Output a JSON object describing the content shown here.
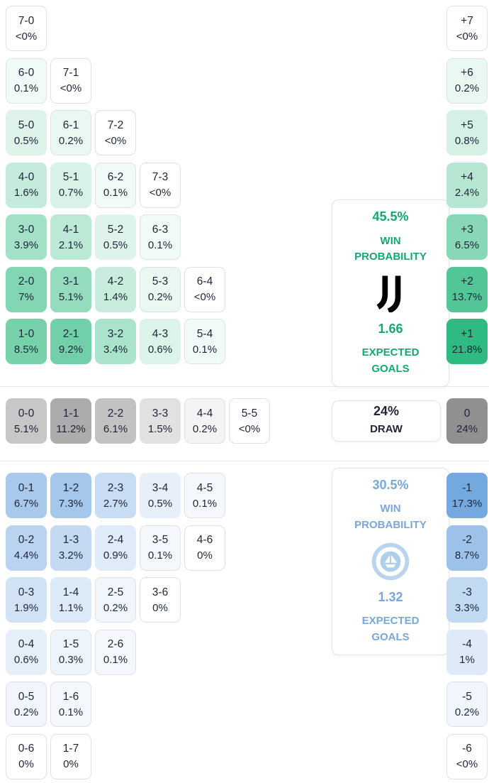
{
  "colors": {
    "home_accent": "#13a873",
    "home_cell": "#2eba80",
    "away_accent": "#7aa7d8",
    "away_cell": "#6aa2de",
    "draw_cell": "#909090",
    "cell_text": "#1e2537",
    "cell_border": "#e2e2e2"
  },
  "icons": {
    "home_logo": "juventus-logo",
    "away_logo": "manchester-city-logo"
  },
  "chart_data": {
    "type": "heatmap",
    "description": "Correct score probability matrix with goal-difference column and win/draw summaries",
    "home": {
      "summary": {
        "probability": "45.5%",
        "win_label": "WIN PROBABILITY",
        "expected_goals": "1.66",
        "eg_label": "EXPECTED GOALS"
      },
      "rows": [
        [
          {
            "score": "7-0",
            "pct": "<0%",
            "v": 0
          }
        ],
        [
          {
            "score": "6-0",
            "pct": "0.1%",
            "v": 0.1
          },
          {
            "score": "7-1",
            "pct": "<0%",
            "v": 0
          }
        ],
        [
          {
            "score": "5-0",
            "pct": "0.5%",
            "v": 0.5
          },
          {
            "score": "6-1",
            "pct": "0.2%",
            "v": 0.2
          },
          {
            "score": "7-2",
            "pct": "<0%",
            "v": 0
          }
        ],
        [
          {
            "score": "4-0",
            "pct": "1.6%",
            "v": 1.6
          },
          {
            "score": "5-1",
            "pct": "0.7%",
            "v": 0.7
          },
          {
            "score": "6-2",
            "pct": "0.1%",
            "v": 0.1
          },
          {
            "score": "7-3",
            "pct": "<0%",
            "v": 0
          }
        ],
        [
          {
            "score": "3-0",
            "pct": "3.9%",
            "v": 3.9
          },
          {
            "score": "4-1",
            "pct": "2.1%",
            "v": 2.1
          },
          {
            "score": "5-2",
            "pct": "0.5%",
            "v": 0.5
          },
          {
            "score": "6-3",
            "pct": "0.1%",
            "v": 0.1
          }
        ],
        [
          {
            "score": "2-0",
            "pct": "7%",
            "v": 7
          },
          {
            "score": "3-1",
            "pct": "5.1%",
            "v": 5.1
          },
          {
            "score": "4-2",
            "pct": "1.4%",
            "v": 1.4
          },
          {
            "score": "5-3",
            "pct": "0.2%",
            "v": 0.2
          },
          {
            "score": "6-4",
            "pct": "<0%",
            "v": 0
          }
        ],
        [
          {
            "score": "1-0",
            "pct": "8.5%",
            "v": 8.5
          },
          {
            "score": "2-1",
            "pct": "9.2%",
            "v": 9.2
          },
          {
            "score": "3-2",
            "pct": "3.4%",
            "v": 3.4
          },
          {
            "score": "4-3",
            "pct": "0.6%",
            "v": 0.6
          },
          {
            "score": "5-4",
            "pct": "0.1%",
            "v": 0.1
          }
        ]
      ],
      "diffs": [
        {
          "label": "+7",
          "pct": "<0%",
          "v": 0
        },
        {
          "label": "+6",
          "pct": "0.2%",
          "v": 0.2
        },
        {
          "label": "+5",
          "pct": "0.8%",
          "v": 0.8
        },
        {
          "label": "+4",
          "pct": "2.4%",
          "v": 2.4
        },
        {
          "label": "+3",
          "pct": "6.5%",
          "v": 6.5
        },
        {
          "label": "+2",
          "pct": "13.7%",
          "v": 13.7
        },
        {
          "label": "+1",
          "pct": "21.8%",
          "v": 21.8
        }
      ]
    },
    "draw": {
      "summary": {
        "probability": "24%",
        "label": "DRAW"
      },
      "cells": [
        {
          "score": "0-0",
          "pct": "5.1%",
          "v": 5.1
        },
        {
          "score": "1-1",
          "pct": "11.2%",
          "v": 11.2
        },
        {
          "score": "2-2",
          "pct": "6.1%",
          "v": 6.1
        },
        {
          "score": "3-3",
          "pct": "1.5%",
          "v": 1.5
        },
        {
          "score": "4-4",
          "pct": "0.2%",
          "v": 0.2
        },
        {
          "score": "5-5",
          "pct": "<0%",
          "v": 0
        }
      ],
      "diff": {
        "label": "0",
        "pct": "24%",
        "v": 24
      }
    },
    "away": {
      "summary": {
        "probability": "30.5%",
        "win_label": "WIN PROBABILITY",
        "expected_goals": "1.32",
        "eg_label": "EXPECTED GOALS"
      },
      "rows": [
        [
          {
            "score": "0-1",
            "pct": "6.7%",
            "v": 6.7
          },
          {
            "score": "1-2",
            "pct": "7.3%",
            "v": 7.3
          },
          {
            "score": "2-3",
            "pct": "2.7%",
            "v": 2.7
          },
          {
            "score": "3-4",
            "pct": "0.5%",
            "v": 0.5
          },
          {
            "score": "4-5",
            "pct": "0.1%",
            "v": 0.1
          }
        ],
        [
          {
            "score": "0-2",
            "pct": "4.4%",
            "v": 4.4
          },
          {
            "score": "1-3",
            "pct": "3.2%",
            "v": 3.2
          },
          {
            "score": "2-4",
            "pct": "0.9%",
            "v": 0.9
          },
          {
            "score": "3-5",
            "pct": "0.1%",
            "v": 0.1
          },
          {
            "score": "4-6",
            "pct": "0%",
            "v": 0
          }
        ],
        [
          {
            "score": "0-3",
            "pct": "1.9%",
            "v": 1.9
          },
          {
            "score": "1-4",
            "pct": "1.1%",
            "v": 1.1
          },
          {
            "score": "2-5",
            "pct": "0.2%",
            "v": 0.2
          },
          {
            "score": "3-6",
            "pct": "0%",
            "v": 0
          }
        ],
        [
          {
            "score": "0-4",
            "pct": "0.6%",
            "v": 0.6
          },
          {
            "score": "1-5",
            "pct": "0.3%",
            "v": 0.3
          },
          {
            "score": "2-6",
            "pct": "0.1%",
            "v": 0.1
          }
        ],
        [
          {
            "score": "0-5",
            "pct": "0.2%",
            "v": 0.2
          },
          {
            "score": "1-6",
            "pct": "0.1%",
            "v": 0.1
          }
        ],
        [
          {
            "score": "0-6",
            "pct": "0%",
            "v": 0
          },
          {
            "score": "1-7",
            "pct": "0%",
            "v": 0
          }
        ]
      ],
      "diffs": [
        {
          "label": "-1",
          "pct": "17.3%",
          "v": 17.3
        },
        {
          "label": "-2",
          "pct": "8.7%",
          "v": 8.7
        },
        {
          "label": "-3",
          "pct": "3.3%",
          "v": 3.3
        },
        {
          "label": "-4",
          "pct": "1%",
          "v": 1
        },
        {
          "label": "-5",
          "pct": "0.2%",
          "v": 0.2
        },
        {
          "label": "-6",
          "pct": "<0%",
          "v": 0
        }
      ]
    }
  }
}
